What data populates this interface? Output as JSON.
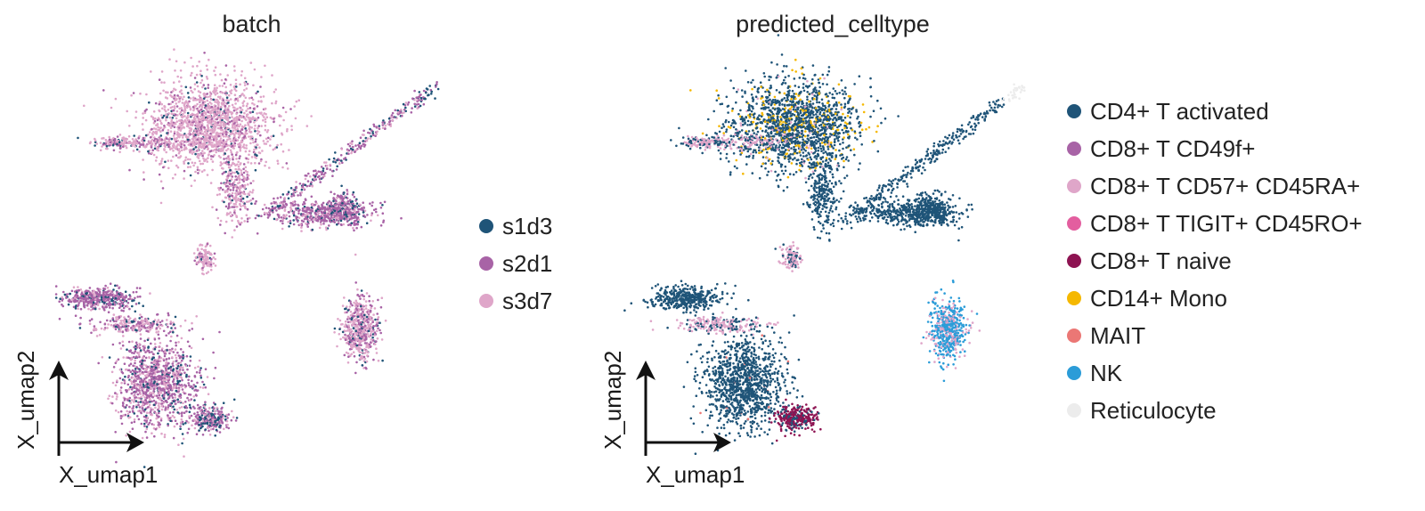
{
  "chart_data": [
    {
      "type": "scatter",
      "title": "batch",
      "xlabel": "X_umap1",
      "ylabel": "X_umap2",
      "legend_position": "right",
      "grid": false,
      "series": [
        {
          "name": "s1d3",
          "color": "#1f5478"
        },
        {
          "name": "s2d1",
          "color": "#a863a6"
        },
        {
          "name": "s3d7",
          "color": "#dfa6c9"
        }
      ]
    },
    {
      "type": "scatter",
      "title": "predicted_celltype",
      "xlabel": "X_umap1",
      "ylabel": "X_umap2",
      "legend_position": "right",
      "grid": false,
      "series": [
        {
          "name": "CD4+ T activated",
          "color": "#1f5478"
        },
        {
          "name": "CD8+ T CD49f+",
          "color": "#a863a6"
        },
        {
          "name": "CD8+ T CD57+ CD45RA+",
          "color": "#dfa6c9"
        },
        {
          "name": "CD8+ T TIGIT+ CD45RO+",
          "color": "#e35e9f"
        },
        {
          "name": "CD8+ T naive",
          "color": "#8e1352"
        },
        {
          "name": "CD14+ Mono",
          "color": "#f5b800"
        },
        {
          "name": "MAIT",
          "color": "#eb7775"
        },
        {
          "name": "NK",
          "color": "#2b9cd8"
        },
        {
          "name": "Reticulocyte",
          "color": "#ececec"
        }
      ]
    }
  ]
}
